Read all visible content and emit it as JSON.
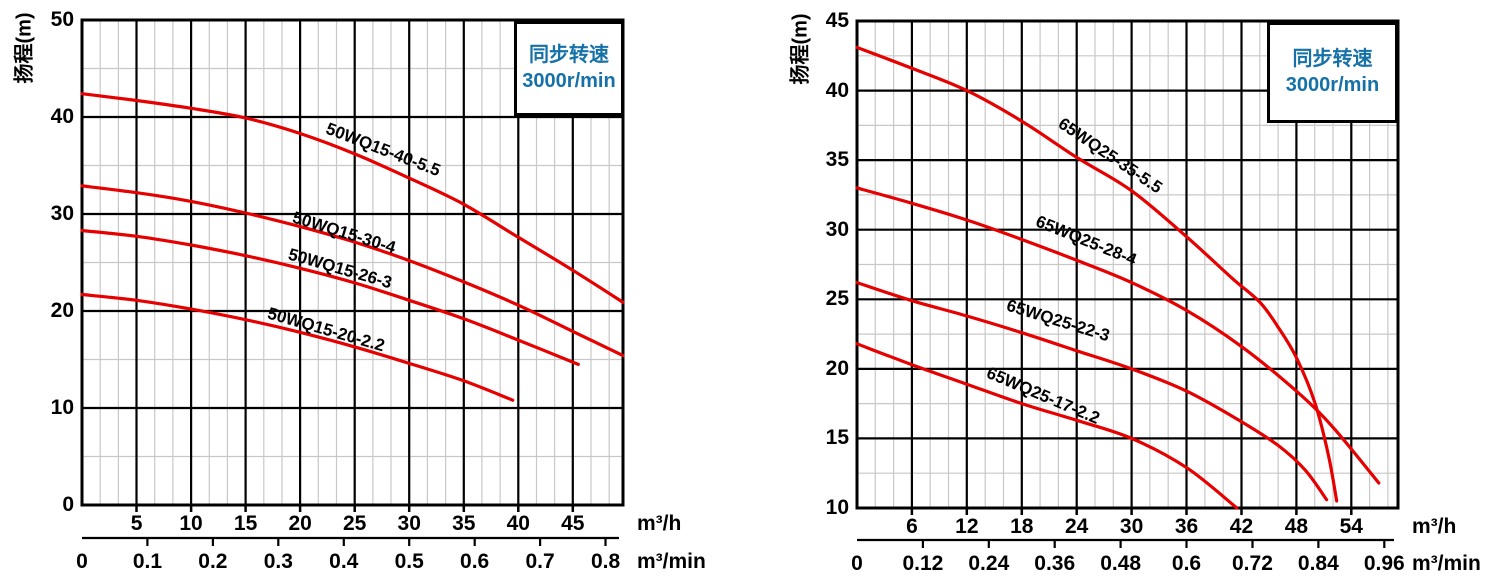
{
  "colors": {
    "curve": "#e60000",
    "legend_text": "#1571a8",
    "grid_major": "#000000",
    "grid_minor": "#c8c8c8"
  },
  "chart_data": [
    {
      "type": "line",
      "series_family": "50WQ15",
      "ylabel": "扬程(m)",
      "legend": {
        "line1": "同步转速",
        "line2": "3000r/min"
      },
      "y_axis": {
        "range": [
          0,
          50
        ],
        "major_step": 10,
        "minor_step": 5,
        "tick_labels": [
          "50",
          "40",
          "30",
          "20",
          "10",
          "0"
        ]
      },
      "x_axis": {
        "unit": "m³/h",
        "range_m3h": [
          0,
          49.6
        ],
        "major_step": 5,
        "minor_per_major": 3,
        "tick_labels": [
          "5",
          "10",
          "15",
          "20",
          "25",
          "30",
          "35",
          "40",
          "45"
        ]
      },
      "x_axis2": {
        "unit": "m³/min",
        "step_m3h": 6,
        "tick_labels": [
          "0",
          "0.1",
          "0.2",
          "0.3",
          "0.4",
          "0.5",
          "0.6",
          "0.7",
          "0.8"
        ]
      },
      "curves": [
        {
          "label": "50WQ15-40-5.5",
          "points_m3h_m": [
            [
              0,
              42.4
            ],
            [
              5,
              41.7
            ],
            [
              10,
              40.9
            ],
            [
              15,
              39.9
            ],
            [
              20,
              38.3
            ],
            [
              25,
              36.2
            ],
            [
              30,
              33.7
            ],
            [
              35,
              31.0
            ],
            [
              40,
              27.6
            ],
            [
              45,
              24.2
            ],
            [
              49.6,
              20.9
            ]
          ]
        },
        {
          "label": "50WQ15-30-4",
          "points_m3h_m": [
            [
              0,
              32.9
            ],
            [
              5,
              32.2
            ],
            [
              10,
              31.3
            ],
            [
              15,
              30.1
            ],
            [
              20,
              28.7
            ],
            [
              25,
              27.1
            ],
            [
              30,
              25.2
            ],
            [
              35,
              23.0
            ],
            [
              40,
              20.6
            ],
            [
              45,
              17.9
            ],
            [
              49.6,
              15.4
            ]
          ]
        },
        {
          "label": "50WQ15-26-3",
          "points_m3h_m": [
            [
              0,
              28.3
            ],
            [
              5,
              27.7
            ],
            [
              10,
              26.8
            ],
            [
              15,
              25.7
            ],
            [
              20,
              24.4
            ],
            [
              25,
              22.9
            ],
            [
              30,
              21.1
            ],
            [
              35,
              19.2
            ],
            [
              40,
              17.0
            ],
            [
              45.5,
              14.5
            ]
          ]
        },
        {
          "label": "50WQ15-20-2.2",
          "points_m3h_m": [
            [
              0,
              21.7
            ],
            [
              5,
              21.1
            ],
            [
              10,
              20.2
            ],
            [
              15,
              19.1
            ],
            [
              20,
              17.8
            ],
            [
              25,
              16.3
            ],
            [
              30,
              14.6
            ],
            [
              35,
              12.8
            ],
            [
              39.5,
              10.8
            ]
          ]
        }
      ]
    },
    {
      "type": "line",
      "series_family": "65WQ25",
      "ylabel": "扬程(m)",
      "legend": {
        "line1": "同步转速",
        "line2": "3000r/min"
      },
      "y_axis": {
        "range": [
          10,
          45
        ],
        "major_step": 5,
        "minor_step": 2.5,
        "tick_labels": [
          "45",
          "40",
          "35",
          "30",
          "25",
          "20",
          "15",
          "10"
        ]
      },
      "x_axis": {
        "unit": "m³/h",
        "range_m3h": [
          0,
          59.1
        ],
        "major_step": 6,
        "minor_per_major": 3,
        "tick_labels": [
          "6",
          "12",
          "18",
          "24",
          "30",
          "36",
          "42",
          "48",
          "54"
        ]
      },
      "x_axis2": {
        "unit": "m³/min",
        "step_m3h": 7.2,
        "tick_labels": [
          "0",
          "0.12",
          "0.24",
          "0.36",
          "0.48",
          "0.6",
          "0.72",
          "0.84",
          "0.96"
        ]
      },
      "curves": [
        {
          "label": "65WQ25-35-5.5",
          "points_m3h_m": [
            [
              0,
              43.1
            ],
            [
              6,
              41.6
            ],
            [
              12,
              40.0
            ],
            [
              18,
              37.8
            ],
            [
              24,
              35.2
            ],
            [
              30,
              32.8
            ],
            [
              36,
              29.5
            ],
            [
              41,
              26.5
            ],
            [
              44,
              24.8
            ],
            [
              46,
              23.0
            ],
            [
              48,
              20.8
            ],
            [
              50,
              17.6
            ],
            [
              51.5,
              13.8
            ],
            [
              52.4,
              10.5
            ]
          ]
        },
        {
          "label": "65WQ25-28-4",
          "points_m3h_m": [
            [
              0,
              33.0
            ],
            [
              6,
              31.9
            ],
            [
              12,
              30.7
            ],
            [
              18,
              29.3
            ],
            [
              24,
              27.8
            ],
            [
              30,
              26.2
            ],
            [
              36,
              24.2
            ],
            [
              42,
              21.6
            ],
            [
              48,
              18.4
            ],
            [
              52,
              15.8
            ],
            [
              57,
              11.8
            ]
          ]
        },
        {
          "label": "65WQ25-22-3",
          "points_m3h_m": [
            [
              0,
              26.2
            ],
            [
              6,
              24.9
            ],
            [
              12,
              23.8
            ],
            [
              18,
              22.6
            ],
            [
              24,
              21.3
            ],
            [
              30,
              20.0
            ],
            [
              36,
              18.4
            ],
            [
              42,
              16.2
            ],
            [
              46,
              14.5
            ],
            [
              49,
              12.7
            ],
            [
              51.3,
              10.6
            ]
          ]
        },
        {
          "label": "65WQ25-17-2.2",
          "points_m3h_m": [
            [
              0,
              21.8
            ],
            [
              6,
              20.3
            ],
            [
              12,
              18.9
            ],
            [
              18,
              17.5
            ],
            [
              24,
              16.3
            ],
            [
              30,
              15.0
            ],
            [
              36,
              12.9
            ],
            [
              41.5,
              10.0
            ]
          ]
        }
      ]
    }
  ]
}
